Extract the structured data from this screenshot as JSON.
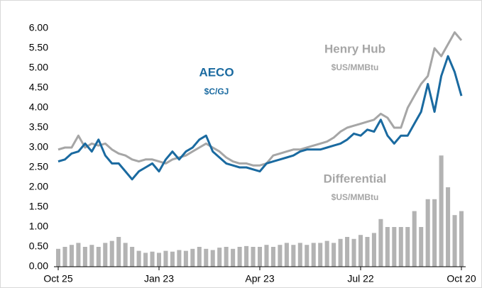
{
  "chart_data": {
    "type": "line",
    "categories": [
      "Oct 25",
      null,
      null,
      null,
      null,
      null,
      null,
      null,
      null,
      null,
      null,
      null,
      null,
      null,
      null,
      "Jan 23",
      null,
      null,
      null,
      null,
      null,
      null,
      null,
      null,
      null,
      null,
      null,
      null,
      null,
      null,
      "Apr 23",
      null,
      null,
      null,
      null,
      null,
      null,
      null,
      null,
      null,
      null,
      null,
      null,
      null,
      null,
      "Jul 22",
      null,
      null,
      null,
      null,
      null,
      null,
      null,
      null,
      null,
      null,
      null,
      null,
      null,
      null,
      "Oct 20"
    ],
    "series": [
      {
        "name": "Differential",
        "unit": "$US/MMBtu",
        "type": "bar",
        "color": "#b3b3b3",
        "values": [
          0.45,
          0.5,
          0.55,
          0.6,
          0.5,
          0.55,
          0.5,
          0.6,
          0.65,
          0.75,
          0.6,
          0.5,
          0.4,
          0.35,
          0.38,
          0.35,
          0.4,
          0.38,
          0.42,
          0.4,
          0.45,
          0.5,
          0.45,
          0.42,
          0.48,
          0.5,
          0.45,
          0.5,
          0.52,
          0.5,
          0.5,
          0.55,
          0.5,
          0.55,
          0.6,
          0.55,
          0.6,
          0.55,
          0.6,
          0.6,
          0.65,
          0.6,
          0.7,
          0.75,
          0.7,
          0.8,
          0.75,
          0.85,
          1.2,
          1.0,
          1.0,
          1.0,
          1.0,
          1.4,
          1.0,
          1.7,
          1.7,
          2.8,
          2.0,
          1.3,
          1.4
        ]
      },
      {
        "name": "Henry Hub",
        "unit": "$US/MMBtu",
        "type": "line",
        "color": "#a6a6a6",
        "values": [
          2.95,
          3.0,
          3.0,
          3.3,
          3.0,
          3.1,
          3.05,
          3.1,
          2.95,
          2.85,
          2.8,
          2.7,
          2.65,
          2.7,
          2.7,
          2.65,
          2.6,
          2.7,
          2.75,
          2.8,
          2.9,
          3.0,
          3.1,
          3.0,
          2.9,
          2.75,
          2.65,
          2.6,
          2.6,
          2.55,
          2.55,
          2.6,
          2.8,
          2.85,
          2.9,
          2.95,
          2.95,
          3.0,
          3.05,
          3.1,
          3.15,
          3.25,
          3.4,
          3.5,
          3.55,
          3.6,
          3.65,
          3.7,
          3.85,
          3.75,
          3.5,
          3.5,
          4.0,
          4.3,
          4.6,
          4.8,
          5.5,
          5.3,
          5.6,
          5.9,
          5.7
        ]
      },
      {
        "name": "AECO",
        "unit": "$C/GJ",
        "type": "line",
        "color": "#1a6aa0",
        "values": [
          2.65,
          2.7,
          2.85,
          2.9,
          3.1,
          2.9,
          3.2,
          2.8,
          2.6,
          2.6,
          2.4,
          2.2,
          2.4,
          2.5,
          2.6,
          2.4,
          2.7,
          2.9,
          2.7,
          2.9,
          3.0,
          3.2,
          3.3,
          2.9,
          2.75,
          2.6,
          2.55,
          2.5,
          2.5,
          2.45,
          2.4,
          2.6,
          2.65,
          2.7,
          2.75,
          2.8,
          2.9,
          2.95,
          2.95,
          2.95,
          3.0,
          3.05,
          3.1,
          3.2,
          3.35,
          3.3,
          3.45,
          3.4,
          3.7,
          3.3,
          3.1,
          3.3,
          3.3,
          3.6,
          3.9,
          4.6,
          3.9,
          4.8,
          5.3,
          4.9,
          4.3
        ]
      }
    ],
    "ylim": [
      0,
      6
    ],
    "yticks": [
      {
        "value": 0,
        "label": "0.00"
      },
      {
        "value": 0.5,
        "label": "0.50"
      },
      {
        "value": 1,
        "label": "1.00"
      },
      {
        "value": 1.5,
        "label": "1.50"
      },
      {
        "value": 2,
        "label": "2.00"
      },
      {
        "value": 2.5,
        "label": "2.50"
      },
      {
        "value": 3,
        "label": "3.00"
      },
      {
        "value": 3.5,
        "label": "3.50"
      },
      {
        "value": 4,
        "label": "4.00"
      },
      {
        "value": 4.5,
        "label": "4.50"
      },
      {
        "value": 5,
        "label": "5.00"
      },
      {
        "value": 5.5,
        "label": "5.50"
      },
      {
        "value": 6,
        "label": "6.00"
      }
    ],
    "grid": false
  }
}
